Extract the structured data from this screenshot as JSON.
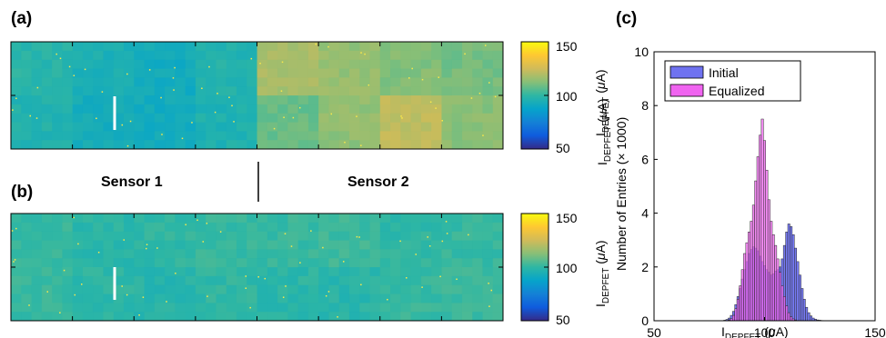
{
  "panels": {
    "a": "(a)",
    "b": "(b)",
    "c": "(c)"
  },
  "sensor_labels": [
    "Sensor 1",
    "Sensor 2"
  ],
  "colormap": {
    "name": "parula",
    "min": 50,
    "max": 150,
    "ticks": [
      "150",
      "100",
      "50"
    ],
    "stops": [
      "#352a87",
      "#0f5cdd",
      "#1481d6",
      "#06a4ca",
      "#2eb7a4",
      "#87bf77",
      "#d1bb59",
      "#fec832",
      "#f9fb0e"
    ]
  },
  "heatmap_a": {
    "grid_cols": 8,
    "grid_rows": 2,
    "tile_means": [
      [
        98,
        95,
        92,
        97,
        118,
        115,
        112,
        110
      ],
      [
        97,
        93,
        92,
        96,
        108,
        114,
        122,
        113
      ]
    ]
  },
  "heatmap_b": {
    "grid_cols": 8,
    "grid_rows": 2,
    "tile_means": [
      [
        101,
        99,
        100,
        101,
        101,
        102,
        100,
        101
      ],
      [
        101,
        99,
        98,
        100,
        99,
        98,
        101,
        102
      ]
    ]
  },
  "colorbar_label": "I_DEPFET (μA)",
  "chart_data": [
    {
      "type": "heatmap",
      "panel": "(a)",
      "title": "",
      "colorbar_label": "I_DEPFET (μA)",
      "clim": [
        50,
        150
      ],
      "colorbar_ticks": [
        50,
        100,
        150
      ]
    },
    {
      "type": "heatmap",
      "panel": "(b)",
      "title": "",
      "colorbar_label": "I_DEPFET (μA)",
      "clim": [
        50,
        150
      ],
      "colorbar_ticks": [
        50,
        100,
        150
      ]
    },
    {
      "type": "bar",
      "panel": "(c)",
      "title": "",
      "xlabel": "I_DEPFET (μA)",
      "ylabel": "Number of Entries (× 1000)",
      "xlim": [
        50,
        150
      ],
      "ylim": [
        0,
        10
      ],
      "xticks": [
        50,
        100,
        150
      ],
      "yticks": [
        0,
        2,
        4,
        6,
        8,
        10
      ],
      "bin_width": 1,
      "legend_position": "top-left",
      "series": [
        {
          "name": "Initial",
          "color": "#6f72f0",
          "x": [
            82,
            83,
            84,
            85,
            86,
            87,
            88,
            89,
            90,
            91,
            92,
            93,
            94,
            95,
            96,
            97,
            98,
            99,
            100,
            101,
            102,
            103,
            104,
            105,
            106,
            107,
            108,
            109,
            110,
            111,
            112,
            113,
            114,
            115,
            116,
            117,
            118,
            119,
            120,
            121,
            122,
            123,
            124,
            125,
            126,
            127
          ],
          "values": [
            0.02,
            0.05,
            0.1,
            0.2,
            0.35,
            0.6,
            0.9,
            1.2,
            1.55,
            1.9,
            2.2,
            2.5,
            2.65,
            2.75,
            2.7,
            2.6,
            2.4,
            2.2,
            2.05,
            1.9,
            1.8,
            1.7,
            1.75,
            1.85,
            1.9,
            2.0,
            2.3,
            2.8,
            3.3,
            3.6,
            3.5,
            3.2,
            2.7,
            2.2,
            1.7,
            1.2,
            0.8,
            0.5,
            0.3,
            0.18,
            0.1,
            0.06,
            0.03,
            0.02,
            0.01,
            0.0
          ]
        },
        {
          "name": "Equalized",
          "color": "#f064f0",
          "x": [
            84,
            85,
            86,
            87,
            88,
            89,
            90,
            91,
            92,
            93,
            94,
            95,
            96,
            97,
            98,
            99,
            100,
            101,
            102,
            103,
            104,
            105,
            106,
            107,
            108,
            109,
            110,
            111,
            112,
            113,
            114,
            115,
            116
          ],
          "values": [
            0.03,
            0.08,
            0.2,
            0.45,
            0.8,
            1.3,
            1.9,
            2.5,
            2.9,
            3.3,
            3.7,
            4.3,
            5.2,
            6.1,
            6.9,
            7.5,
            6.7,
            5.6,
            4.5,
            3.7,
            3.2,
            2.8,
            2.3,
            1.8,
            1.3,
            0.9,
            0.55,
            0.3,
            0.15,
            0.07,
            0.03,
            0.01,
            0.0
          ]
        }
      ]
    }
  ]
}
